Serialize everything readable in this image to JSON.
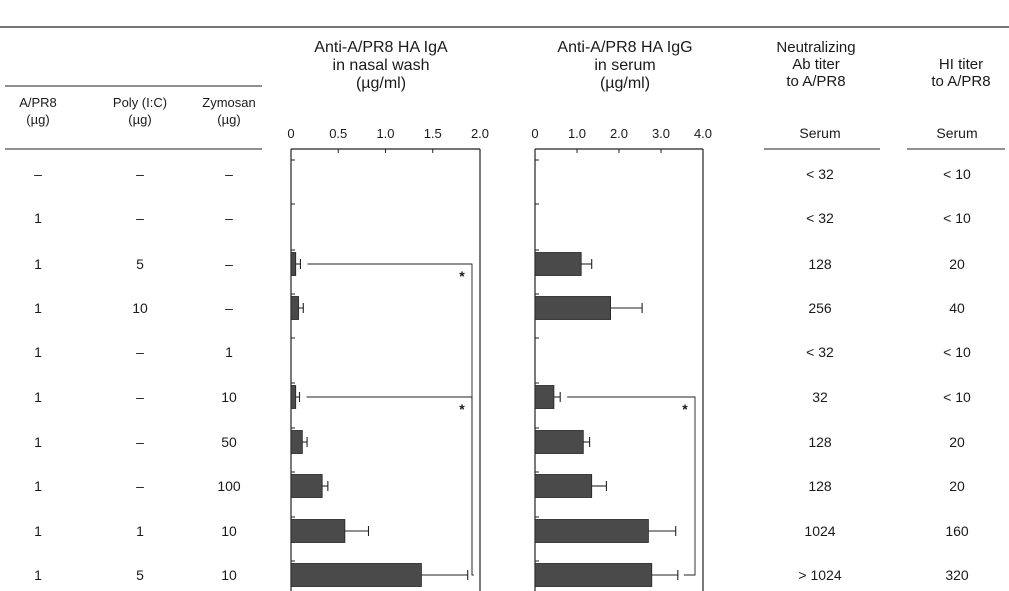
{
  "table": {
    "headers": {
      "apr8": [
        "A/PR8",
        "(µg)"
      ],
      "polyic": [
        "Poly (I:C)",
        "(µg)"
      ],
      "zymosan": [
        "Zymosan",
        "(µg)"
      ],
      "neut": [
        "Neutralizing",
        "Ab titer",
        "to A/PR8"
      ],
      "hi": [
        "HI titer",
        "to A/PR8"
      ],
      "neut_sub": "Serum",
      "hi_sub": "Serum"
    },
    "rows": [
      {
        "apr8": "–",
        "polyic": "–",
        "zymosan": "–",
        "neut": "< 32",
        "hi": "< 10"
      },
      {
        "apr8": "1",
        "polyic": "–",
        "zymosan": "–",
        "neut": "< 32",
        "hi": "< 10"
      },
      {
        "apr8": "1",
        "polyic": "5",
        "zymosan": "–",
        "neut": "128",
        "hi": "20"
      },
      {
        "apr8": "1",
        "polyic": "10",
        "zymosan": "–",
        "neut": "256",
        "hi": "40"
      },
      {
        "apr8": "1",
        "polyic": "–",
        "zymosan": "1",
        "neut": "< 32",
        "hi": "< 10"
      },
      {
        "apr8": "1",
        "polyic": "–",
        "zymosan": "10",
        "neut": "32",
        "hi": "< 10"
      },
      {
        "apr8": "1",
        "polyic": "–",
        "zymosan": "50",
        "neut": "128",
        "hi": "20"
      },
      {
        "apr8": "1",
        "polyic": "–",
        "zymosan": "100",
        "neut": "128",
        "hi": "20"
      },
      {
        "apr8": "1",
        "polyic": "1",
        "zymosan": "10",
        "neut": "1024",
        "hi": "160"
      },
      {
        "apr8": "1",
        "polyic": "5",
        "zymosan": "10",
        "neut": "> 1024",
        "hi": "320"
      }
    ]
  },
  "chart_data": [
    {
      "type": "bar",
      "orientation": "horizontal",
      "title": [
        "Anti-A/PR8 HA IgA",
        "in nasal wash",
        "(µg/ml)"
      ],
      "xlim": [
        0,
        2.0
      ],
      "ticks": [
        0,
        0.5,
        1.0,
        1.5,
        2.0
      ],
      "tick_labels": [
        "0",
        "0.5",
        "1.0",
        "1.5",
        "2.0"
      ],
      "values": [
        0,
        0,
        0.05,
        0.08,
        0,
        0.05,
        0.12,
        0.33,
        0.57,
        1.38
      ],
      "errors": [
        0,
        0,
        0.05,
        0.05,
        0,
        0.04,
        0.05,
        0.06,
        0.25,
        0.49
      ],
      "significance": [
        {
          "rows": [
            2,
            9
          ],
          "label": "*"
        },
        {
          "rows": [
            5,
            9
          ],
          "label": "*"
        }
      ]
    },
    {
      "type": "bar",
      "orientation": "horizontal",
      "title": [
        "Anti-A/PR8 HA IgG",
        "in serum",
        "(µg/ml)"
      ],
      "xlim": [
        0,
        4.0
      ],
      "ticks": [
        0,
        1.0,
        2.0,
        3.0,
        4.0
      ],
      "tick_labels": [
        "0",
        "1.0",
        "2.0",
        "3.0",
        "4.0"
      ],
      "values": [
        0,
        0,
        1.1,
        1.8,
        0,
        0.45,
        1.15,
        1.35,
        2.7,
        2.78
      ],
      "errors": [
        0,
        0,
        0.25,
        0.75,
        0,
        0.15,
        0.15,
        0.35,
        0.65,
        0.62
      ],
      "significance": [
        {
          "rows": [
            5,
            9
          ],
          "label": "*"
        }
      ]
    }
  ]
}
